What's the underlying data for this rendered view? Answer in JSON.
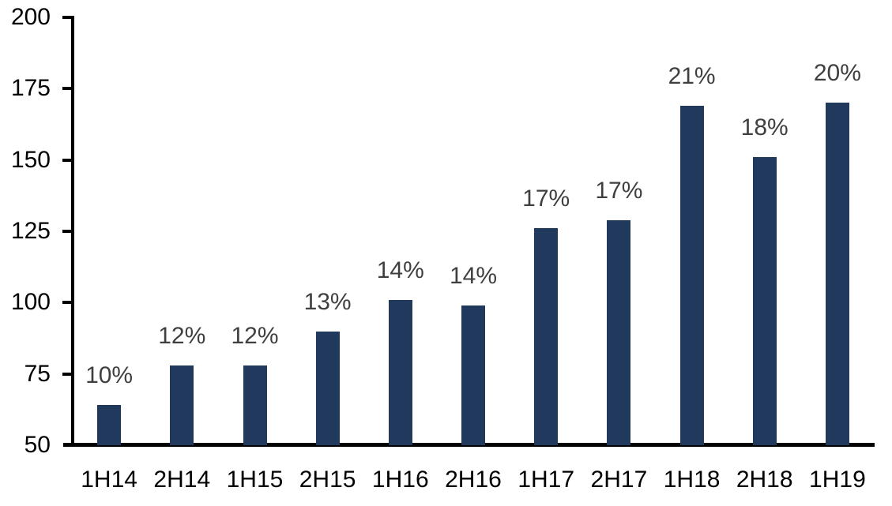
{
  "chart_data": {
    "type": "bar",
    "title": "",
    "xlabel": "",
    "ylabel": "",
    "categories": [
      "1H14",
      "2H14",
      "1H15",
      "2H15",
      "1H16",
      "2H16",
      "1H17",
      "2H17",
      "1H18",
      "2H18",
      "1H19"
    ],
    "values": [
      64,
      78,
      78,
      90,
      101,
      99,
      126,
      129,
      169,
      151,
      170
    ],
    "bar_labels": [
      "10%",
      "12%",
      "12%",
      "13%",
      "14%",
      "14%",
      "17%",
      "17%",
      "21%",
      "18%",
      "20%"
    ],
    "ylim": [
      50,
      200
    ],
    "yticks": [
      50,
      75,
      100,
      125,
      150,
      175,
      200
    ],
    "grid": false,
    "legend": false,
    "colors": {
      "bar": "#21395D",
      "bar_label": "#3F3F3F",
      "axis": "#000000",
      "tick_label": "#000000",
      "background": "#FFFFFF"
    }
  }
}
